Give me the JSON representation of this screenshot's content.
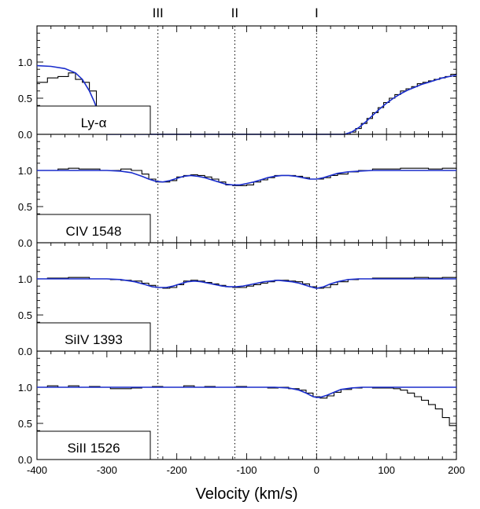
{
  "chart_data": {
    "type": "line",
    "xlabel": "Velocity (km/s)",
    "xlim": [
      -400,
      200
    ],
    "ylim": [
      0.0,
      1.5
    ],
    "x_ticks": [
      "-400",
      "-300",
      "-200",
      "-100",
      "0",
      "100",
      "200"
    ],
    "y_ticks": [
      "0.0",
      "0.5",
      "1.0"
    ],
    "components": [
      {
        "label": "III",
        "velocity": -227
      },
      {
        "label": "II",
        "velocity": -117
      },
      {
        "label": "I",
        "velocity": 0
      }
    ],
    "panels": [
      {
        "name": "Ly-α",
        "data": [
          [
            -400,
            0.72
          ],
          [
            -385,
            0.78
          ],
          [
            -370,
            0.8
          ],
          [
            -355,
            0.85
          ],
          [
            -345,
            0.76
          ],
          [
            -335,
            0.72
          ],
          [
            -325,
            0.6
          ],
          [
            -315,
            0.38
          ],
          [
            -300,
            0.0
          ],
          [
            -240,
            0.0
          ],
          [
            -200,
            0.0
          ],
          [
            0,
            0.0
          ],
          [
            20,
            0.0
          ],
          [
            40,
            0.0
          ],
          [
            48,
            0.03
          ],
          [
            56,
            0.08
          ],
          [
            64,
            0.15
          ],
          [
            72,
            0.22
          ],
          [
            80,
            0.3
          ],
          [
            88,
            0.37
          ],
          [
            96,
            0.44
          ],
          [
            104,
            0.5
          ],
          [
            112,
            0.55
          ],
          [
            120,
            0.6
          ],
          [
            128,
            0.63
          ],
          [
            136,
            0.66
          ],
          [
            144,
            0.7
          ],
          [
            152,
            0.72
          ],
          [
            160,
            0.74
          ],
          [
            168,
            0.76
          ],
          [
            176,
            0.78
          ],
          [
            184,
            0.8
          ],
          [
            192,
            0.83
          ],
          [
            200,
            0.85
          ]
        ],
        "fit": [
          [
            -400,
            0.95
          ],
          [
            -380,
            0.94
          ],
          [
            -360,
            0.91
          ],
          [
            -345,
            0.85
          ],
          [
            -335,
            0.76
          ],
          [
            -325,
            0.6
          ],
          [
            -318,
            0.45
          ],
          [
            -312,
            0.3
          ],
          [
            -305,
            0.12
          ],
          [
            -300,
            0.0
          ],
          [
            -200,
            0.0
          ],
          [
            0,
            0.0
          ],
          [
            40,
            0.0
          ],
          [
            50,
            0.03
          ],
          [
            60,
            0.09
          ],
          [
            70,
            0.17
          ],
          [
            80,
            0.26
          ],
          [
            90,
            0.35
          ],
          [
            100,
            0.43
          ],
          [
            110,
            0.5
          ],
          [
            120,
            0.56
          ],
          [
            130,
            0.61
          ],
          [
            140,
            0.65
          ],
          [
            150,
            0.69
          ],
          [
            160,
            0.72
          ],
          [
            170,
            0.75
          ],
          [
            180,
            0.78
          ],
          [
            190,
            0.8
          ],
          [
            200,
            0.82
          ]
        ]
      },
      {
        "name": "CIV 1548",
        "data": [
          [
            -400,
            1.0
          ],
          [
            -385,
            1.0
          ],
          [
            -370,
            1.02
          ],
          [
            -355,
            1.03
          ],
          [
            -340,
            1.02
          ],
          [
            -325,
            1.02
          ],
          [
            -310,
            1.0
          ],
          [
            -295,
            1.0
          ],
          [
            -280,
            1.02
          ],
          [
            -265,
            1.0
          ],
          [
            -250,
            0.95
          ],
          [
            -240,
            0.88
          ],
          [
            -230,
            0.84
          ],
          [
            -220,
            0.84
          ],
          [
            -210,
            0.86
          ],
          [
            -200,
            0.91
          ],
          [
            -190,
            0.93
          ],
          [
            -180,
            0.94
          ],
          [
            -170,
            0.93
          ],
          [
            -160,
            0.91
          ],
          [
            -150,
            0.88
          ],
          [
            -140,
            0.84
          ],
          [
            -130,
            0.8
          ],
          [
            -120,
            0.79
          ],
          [
            -110,
            0.79
          ],
          [
            -100,
            0.8
          ],
          [
            -90,
            0.84
          ],
          [
            -80,
            0.87
          ],
          [
            -70,
            0.9
          ],
          [
            -60,
            0.93
          ],
          [
            -50,
            0.93
          ],
          [
            -40,
            0.93
          ],
          [
            -30,
            0.92
          ],
          [
            -20,
            0.9
          ],
          [
            -10,
            0.88
          ],
          [
            0,
            0.88
          ],
          [
            10,
            0.9
          ],
          [
            20,
            0.93
          ],
          [
            30,
            0.95
          ],
          [
            45,
            0.98
          ],
          [
            60,
            1.0
          ],
          [
            80,
            1.02
          ],
          [
            100,
            1.02
          ],
          [
            120,
            1.03
          ],
          [
            140,
            1.03
          ],
          [
            160,
            1.02
          ],
          [
            180,
            1.03
          ],
          [
            200,
            1.02
          ]
        ],
        "fit": [
          [
            -400,
            1.0
          ],
          [
            -350,
            1.0
          ],
          [
            -300,
            1.0
          ],
          [
            -280,
            0.99
          ],
          [
            -265,
            0.97
          ],
          [
            -250,
            0.92
          ],
          [
            -240,
            0.88
          ],
          [
            -230,
            0.85
          ],
          [
            -220,
            0.84
          ],
          [
            -210,
            0.86
          ],
          [
            -200,
            0.89
          ],
          [
            -190,
            0.92
          ],
          [
            -180,
            0.93
          ],
          [
            -170,
            0.92
          ],
          [
            -160,
            0.9
          ],
          [
            -150,
            0.87
          ],
          [
            -140,
            0.84
          ],
          [
            -130,
            0.81
          ],
          [
            -120,
            0.8
          ],
          [
            -110,
            0.8
          ],
          [
            -100,
            0.82
          ],
          [
            -90,
            0.84
          ],
          [
            -80,
            0.87
          ],
          [
            -70,
            0.9
          ],
          [
            -60,
            0.92
          ],
          [
            -50,
            0.93
          ],
          [
            -40,
            0.93
          ],
          [
            -30,
            0.92
          ],
          [
            -20,
            0.9
          ],
          [
            -10,
            0.88
          ],
          [
            0,
            0.88
          ],
          [
            10,
            0.9
          ],
          [
            20,
            0.93
          ],
          [
            30,
            0.96
          ],
          [
            45,
            0.98
          ],
          [
            60,
            0.99
          ],
          [
            80,
            1.0
          ],
          [
            120,
            1.0
          ],
          [
            200,
            1.0
          ]
        ]
      },
      {
        "name": "SiIV 1393",
        "data": [
          [
            -400,
            1.0
          ],
          [
            -385,
            1.01
          ],
          [
            -370,
            1.01
          ],
          [
            -355,
            1.02
          ],
          [
            -340,
            1.02
          ],
          [
            -325,
            1.0
          ],
          [
            -310,
            1.0
          ],
          [
            -295,
            0.99
          ],
          [
            -280,
            0.98
          ],
          [
            -265,
            0.97
          ],
          [
            -250,
            0.94
          ],
          [
            -240,
            0.91
          ],
          [
            -230,
            0.88
          ],
          [
            -220,
            0.87
          ],
          [
            -210,
            0.88
          ],
          [
            -200,
            0.92
          ],
          [
            -190,
            0.97
          ],
          [
            -180,
            0.98
          ],
          [
            -170,
            0.97
          ],
          [
            -160,
            0.95
          ],
          [
            -150,
            0.93
          ],
          [
            -140,
            0.91
          ],
          [
            -130,
            0.89
          ],
          [
            -120,
            0.88
          ],
          [
            -110,
            0.88
          ],
          [
            -100,
            0.9
          ],
          [
            -90,
            0.92
          ],
          [
            -80,
            0.94
          ],
          [
            -70,
            0.96
          ],
          [
            -60,
            0.98
          ],
          [
            -50,
            0.98
          ],
          [
            -40,
            0.97
          ],
          [
            -30,
            0.96
          ],
          [
            -20,
            0.93
          ],
          [
            -10,
            0.89
          ],
          [
            0,
            0.87
          ],
          [
            10,
            0.88
          ],
          [
            20,
            0.92
          ],
          [
            30,
            0.96
          ],
          [
            45,
            0.99
          ],
          [
            60,
            1.0
          ],
          [
            80,
            1.01
          ],
          [
            100,
            1.01
          ],
          [
            120,
            1.01
          ],
          [
            140,
            1.02
          ],
          [
            160,
            1.01
          ],
          [
            180,
            1.02
          ],
          [
            200,
            1.01
          ]
        ],
        "fit": [
          [
            -400,
            1.0
          ],
          [
            -300,
            1.0
          ],
          [
            -280,
            0.99
          ],
          [
            -260,
            0.96
          ],
          [
            -245,
            0.92
          ],
          [
            -235,
            0.89
          ],
          [
            -225,
            0.88
          ],
          [
            -215,
            0.88
          ],
          [
            -205,
            0.9
          ],
          [
            -195,
            0.93
          ],
          [
            -185,
            0.96
          ],
          [
            -175,
            0.97
          ],
          [
            -165,
            0.96
          ],
          [
            -155,
            0.94
          ],
          [
            -145,
            0.92
          ],
          [
            -135,
            0.9
          ],
          [
            -125,
            0.89
          ],
          [
            -115,
            0.89
          ],
          [
            -105,
            0.9
          ],
          [
            -95,
            0.92
          ],
          [
            -85,
            0.94
          ],
          [
            -75,
            0.96
          ],
          [
            -65,
            0.97
          ],
          [
            -55,
            0.98
          ],
          [
            -45,
            0.97
          ],
          [
            -35,
            0.96
          ],
          [
            -25,
            0.94
          ],
          [
            -15,
            0.91
          ],
          [
            -5,
            0.88
          ],
          [
            0,
            0.87
          ],
          [
            10,
            0.89
          ],
          [
            20,
            0.93
          ],
          [
            30,
            0.96
          ],
          [
            45,
            0.99
          ],
          [
            60,
            1.0
          ],
          [
            100,
            1.0
          ],
          [
            200,
            1.0
          ]
        ]
      },
      {
        "name": "SiII 1526",
        "data": [
          [
            -400,
            1.0
          ],
          [
            -385,
            1.02
          ],
          [
            -370,
            1.0
          ],
          [
            -355,
            1.02
          ],
          [
            -340,
            1.0
          ],
          [
            -325,
            1.01
          ],
          [
            -310,
            1.0
          ],
          [
            -295,
            0.98
          ],
          [
            -280,
            0.98
          ],
          [
            -265,
            0.99
          ],
          [
            -250,
            1.0
          ],
          [
            -235,
            1.01
          ],
          [
            -220,
            1.0
          ],
          [
            -205,
            1.0
          ],
          [
            -190,
            1.02
          ],
          [
            -175,
            1.0
          ],
          [
            -160,
            1.01
          ],
          [
            -145,
            1.0
          ],
          [
            -130,
            1.0
          ],
          [
            -115,
            1.01
          ],
          [
            -100,
            1.0
          ],
          [
            -85,
            1.0
          ],
          [
            -70,
            0.99
          ],
          [
            -55,
            1.0
          ],
          [
            -40,
            0.98
          ],
          [
            -25,
            0.96
          ],
          [
            -15,
            0.92
          ],
          [
            -5,
            0.87
          ],
          [
            5,
            0.85
          ],
          [
            15,
            0.88
          ],
          [
            25,
            0.93
          ],
          [
            35,
            0.97
          ],
          [
            50,
            0.99
          ],
          [
            65,
            1.0
          ],
          [
            80,
            0.99
          ],
          [
            95,
            0.99
          ],
          [
            110,
            0.98
          ],
          [
            120,
            0.96
          ],
          [
            130,
            0.92
          ],
          [
            140,
            0.87
          ],
          [
            150,
            0.82
          ],
          [
            160,
            0.76
          ],
          [
            170,
            0.7
          ],
          [
            180,
            0.58
          ],
          [
            190,
            0.47
          ],
          [
            200,
            0.36
          ]
        ],
        "fit": [
          [
            -400,
            1.0
          ],
          [
            -200,
            1.0
          ],
          [
            -60,
            1.0
          ],
          [
            -40,
            0.99
          ],
          [
            -25,
            0.96
          ],
          [
            -15,
            0.92
          ],
          [
            -5,
            0.87
          ],
          [
            0,
            0.86
          ],
          [
            5,
            0.86
          ],
          [
            15,
            0.89
          ],
          [
            25,
            0.93
          ],
          [
            35,
            0.97
          ],
          [
            50,
            0.99
          ],
          [
            65,
            1.0
          ],
          [
            200,
            1.0
          ]
        ]
      }
    ]
  }
}
